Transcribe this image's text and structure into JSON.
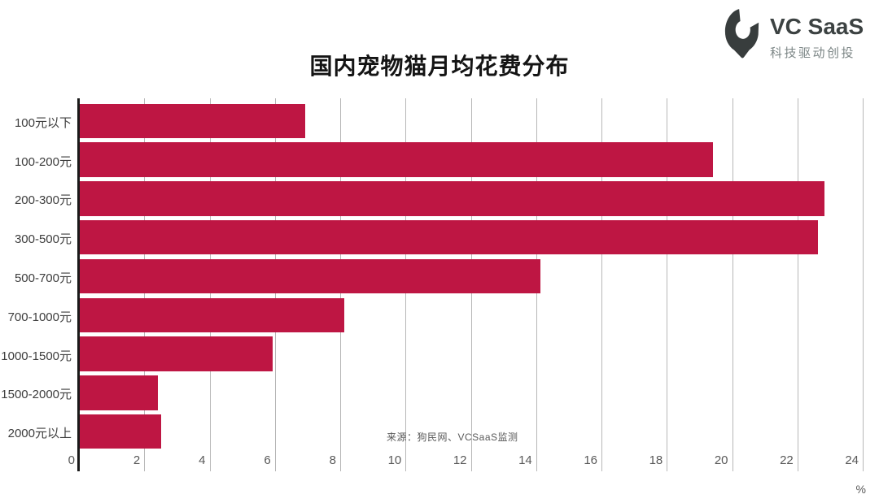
{
  "brand": {
    "name": "VC SaaS",
    "tagline": "科技驱动创投",
    "icon": "vc-saas-pin-icon",
    "icon_color": "#383d3d"
  },
  "chart_data": {
    "type": "bar",
    "orientation": "horizontal",
    "title": "国内宠物猫月均花费分布",
    "categories": [
      "100元以下",
      "100-200元",
      "200-300元",
      "300-500元",
      "500-700元",
      "700-1000元",
      "1000-1500元",
      "1500-2000元",
      "2000元以上"
    ],
    "values": [
      6.9,
      19.4,
      22.8,
      22.6,
      14.1,
      8.1,
      5.9,
      2.4,
      2.5
    ],
    "xlim": [
      0,
      24
    ],
    "xticks": [
      0,
      2,
      4,
      6,
      8,
      10,
      12,
      14,
      16,
      18,
      20,
      22,
      24
    ],
    "xlabel": "%",
    "grid": true,
    "legend_position": "none",
    "bar_color": "#be1643",
    "grid_color": "#b7b7b7",
    "axis_color": "#1a1a1a",
    "source_note": "来源：狗民网、VCSaaS监测"
  }
}
